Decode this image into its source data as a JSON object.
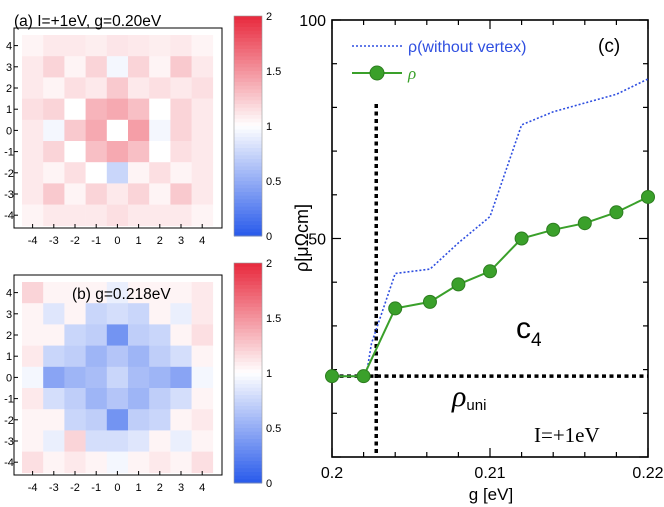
{
  "chart_data": [
    {
      "type": "heatmap",
      "panel": "(a)",
      "title": "(a) I=+1eV, g=0.20eV",
      "x_ticks": [
        "-4",
        "-3",
        "-2",
        "-1",
        "0",
        "1",
        "2",
        "3",
        "4"
      ],
      "y_ticks": [
        "4",
        "3",
        "2",
        "1",
        "0",
        "-1",
        "-2",
        "-3",
        "-4"
      ],
      "colorbar": {
        "range": [
          0,
          2
        ],
        "ticks": [
          "2",
          "1.5",
          "1",
          "0.5",
          "0"
        ]
      },
      "values": [
        [
          1.05,
          1.1,
          1.1,
          1.08,
          1.12,
          1.1,
          1.08,
          1.1,
          1.05
        ],
        [
          1.1,
          1.2,
          1.05,
          1.2,
          0.95,
          1.2,
          1.05,
          1.25,
          1.1
        ],
        [
          1.1,
          1.05,
          1.15,
          1.1,
          1.25,
          1.1,
          1.15,
          1.1,
          1.15
        ],
        [
          1.15,
          1.2,
          1.0,
          1.35,
          1.4,
          1.3,
          1.0,
          1.2,
          1.1
        ],
        [
          1.1,
          0.95,
          1.25,
          1.4,
          1.0,
          1.45,
          0.95,
          1.2,
          1.1
        ],
        [
          1.1,
          1.2,
          1.0,
          1.3,
          1.4,
          1.3,
          1.0,
          1.15,
          1.1
        ],
        [
          1.1,
          1.05,
          1.15,
          1.0,
          0.75,
          1.05,
          1.15,
          1.05,
          1.1
        ],
        [
          1.1,
          1.25,
          1.05,
          1.2,
          1.1,
          1.2,
          1.05,
          1.25,
          1.1
        ],
        [
          1.05,
          1.1,
          1.1,
          1.1,
          1.15,
          1.1,
          1.1,
          1.1,
          1.05
        ]
      ]
    },
    {
      "type": "heatmap",
      "panel": "(b)",
      "title": "(b) g=0.218eV",
      "x_ticks": [
        "-4",
        "-3",
        "-2",
        "-1",
        "0",
        "1",
        "2",
        "3",
        "4"
      ],
      "y_ticks": [
        "4",
        "3",
        "2",
        "1",
        "0",
        "-1",
        "-2",
        "-3",
        "-4"
      ],
      "colorbar": {
        "range": [
          0,
          2
        ],
        "ticks": [
          "2",
          "1.5",
          "1",
          "0.5",
          "0"
        ]
      },
      "values": [
        [
          1.2,
          1.05,
          1.05,
          1.05,
          0.9,
          1.05,
          1.05,
          1.05,
          1.1
        ],
        [
          1.05,
          0.85,
          1.05,
          0.75,
          0.8,
          0.75,
          1.05,
          0.9,
          1.1
        ],
        [
          1.05,
          1.05,
          0.75,
          0.7,
          0.35,
          0.7,
          0.75,
          1.05,
          1.15
        ],
        [
          1.1,
          0.75,
          0.7,
          0.55,
          0.65,
          0.55,
          0.7,
          0.8,
          1.05
        ],
        [
          0.95,
          0.45,
          0.55,
          0.6,
          0.75,
          0.6,
          0.55,
          0.45,
          0.95
        ],
        [
          1.1,
          0.8,
          0.7,
          0.55,
          0.65,
          0.55,
          0.7,
          0.8,
          1.05
        ],
        [
          1.05,
          1.05,
          0.75,
          0.7,
          0.35,
          0.7,
          0.75,
          1.05,
          1.1
        ],
        [
          1.05,
          0.9,
          1.2,
          0.8,
          0.8,
          0.85,
          1.05,
          0.9,
          1.05
        ],
        [
          1.15,
          1.05,
          1.1,
          1.05,
          0.95,
          1.05,
          1.1,
          1.05,
          1.15
        ]
      ]
    },
    {
      "type": "line",
      "panel": "(c)",
      "panel_label": "(c)",
      "xlabel": "g [eV]",
      "ylabel": "ρ[μΩcm]",
      "xlim": [
        0.2,
        0.22
      ],
      "ylim": [
        0,
        100
      ],
      "x_ticks": [
        "0.2",
        "0.21",
        "0.22"
      ],
      "y_ticks": [
        "100",
        "50"
      ],
      "series": [
        {
          "name": "ρ(without vertex)",
          "style": "dotted",
          "color": "#2f4fe0",
          "x": [
            0.2,
            0.202,
            0.2022,
            0.2025,
            0.204,
            0.2062,
            0.208,
            0.21,
            0.212,
            0.214,
            0.216,
            0.218,
            0.22
          ],
          "y": [
            18.5,
            18.5,
            19.5,
            26,
            42,
            43,
            49,
            55,
            76,
            79,
            81,
            83,
            86.5
          ]
        },
        {
          "name": "ρ",
          "style": "solid-marker",
          "color": "#3aa02a",
          "x": [
            0.2,
            0.202,
            0.204,
            0.2062,
            0.208,
            0.21,
            0.212,
            0.214,
            0.216,
            0.218,
            0.22
          ],
          "y": [
            18.5,
            18.5,
            34,
            35.5,
            39.5,
            42.5,
            50,
            52,
            53.5,
            56,
            59.5
          ]
        }
      ],
      "reference_lines": {
        "vertical_x": 0.2028,
        "horizontal_y": 18.5
      },
      "annotations": {
        "c4": {
          "main": "c",
          "sub": "4"
        },
        "rho_uni": {
          "main": "ρ",
          "sub": "uni"
        },
        "I_label": "I=+1eV"
      },
      "legend": [
        {
          "label": "ρ(without vertex)",
          "color": "#2f4fe0"
        },
        {
          "label": "ρ",
          "color": "#3aa02a"
        }
      ]
    }
  ]
}
